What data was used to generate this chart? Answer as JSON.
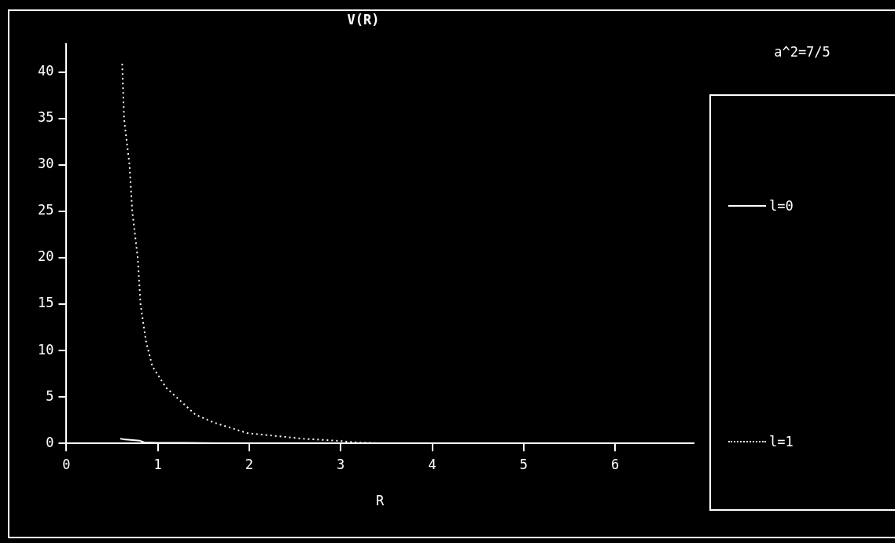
{
  "chart_data": {
    "type": "line",
    "title": "V(R)",
    "xlabel": "R",
    "legend_title": "a^2=7/5",
    "legend": "right",
    "grid": false,
    "marker": "none",
    "xlim": [
      0,
      6.86
    ],
    "xticks": [
      0,
      1,
      2,
      3,
      4,
      5,
      6
    ],
    "ylim": [
      0,
      43
    ],
    "yticks": [
      0,
      5,
      10,
      15,
      20,
      25,
      30,
      35,
      40
    ],
    "series": [
      {
        "name": "l=0",
        "color": "#ffffff",
        "line_style": "solid",
        "x": [
          0.59,
          0.62,
          0.8,
          0.85,
          1.0,
          1.3,
          2,
          3,
          4,
          5,
          5.3
        ],
        "values": [
          0.5,
          0.45,
          0.3,
          0.1,
          0.05,
          0.05,
          0,
          0,
          0,
          0,
          0
        ]
      },
      {
        "name": "l=1",
        "color": "#ffffff",
        "line_style": "dotted",
        "x": [
          0.61,
          0.63,
          0.69,
          0.72,
          0.78,
          0.81,
          0.87,
          0.94,
          1.09,
          1.41,
          1.61,
          1.98,
          2.59,
          3.0,
          3.17,
          3.5,
          4,
          5,
          6,
          6.86
        ],
        "values": [
          40.9,
          35,
          30,
          25,
          20,
          15,
          11,
          8.3,
          6,
          3.1,
          2.25,
          1.1,
          0.5,
          0.26,
          0.1,
          0,
          0,
          0,
          0,
          0
        ]
      }
    ]
  }
}
